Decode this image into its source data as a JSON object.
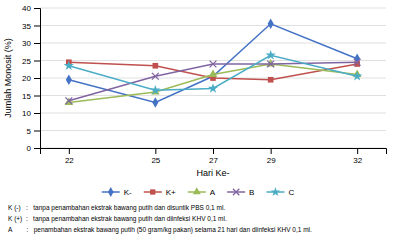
{
  "chart_data": {
    "type": "line",
    "x_label": "Hari Ke-",
    "y_label": "Jumlah Monosit (%)",
    "x": [
      22,
      25,
      27,
      29,
      32
    ],
    "series": [
      {
        "name": "K-",
        "color": "#4472C4",
        "marker": "diamond",
        "values": [
          19.5,
          13.0,
          20.5,
          35.5,
          25.5
        ]
      },
      {
        "name": "K+",
        "color": "#C0504D",
        "marker": "square",
        "values": [
          24.5,
          23.5,
          20.0,
          19.5,
          24.0
        ]
      },
      {
        "name": "A",
        "color": "#9BBB59",
        "marker": "triangle",
        "values": [
          13.0,
          16.0,
          21.0,
          24.0,
          21.0
        ]
      },
      {
        "name": "B",
        "color": "#8064A2",
        "marker": "x",
        "values": [
          13.5,
          20.5,
          24.0,
          24.0,
          24.5
        ]
      },
      {
        "name": "C",
        "color": "#4BACC6",
        "marker": "star",
        "values": [
          23.5,
          16.5,
          17.0,
          26.5,
          20.5
        ]
      }
    ],
    "xlim": [
      21,
      33
    ],
    "xticks": [
      22,
      25,
      27,
      29,
      32
    ],
    "ylim": [
      0,
      40
    ],
    "yticks": [
      0,
      5,
      10,
      15,
      20,
      25,
      30,
      35,
      40
    ],
    "grid": true,
    "legend": "bottom",
    "annotations": [
      "K (-)   :   tanpa penambahan ekstrak bawang putih dan disuntik PBS 0,1 ml.",
      "K (+)  :   tanpa penambahan ekstrak bawang putih dan diinfeksi KHV 0,1 ml.",
      "A        :   penambahan ekstrak bawang putih (50 gram/kg pakan) selama 21 hari dan diinfeksi KHV 0,1 ml."
    ]
  }
}
